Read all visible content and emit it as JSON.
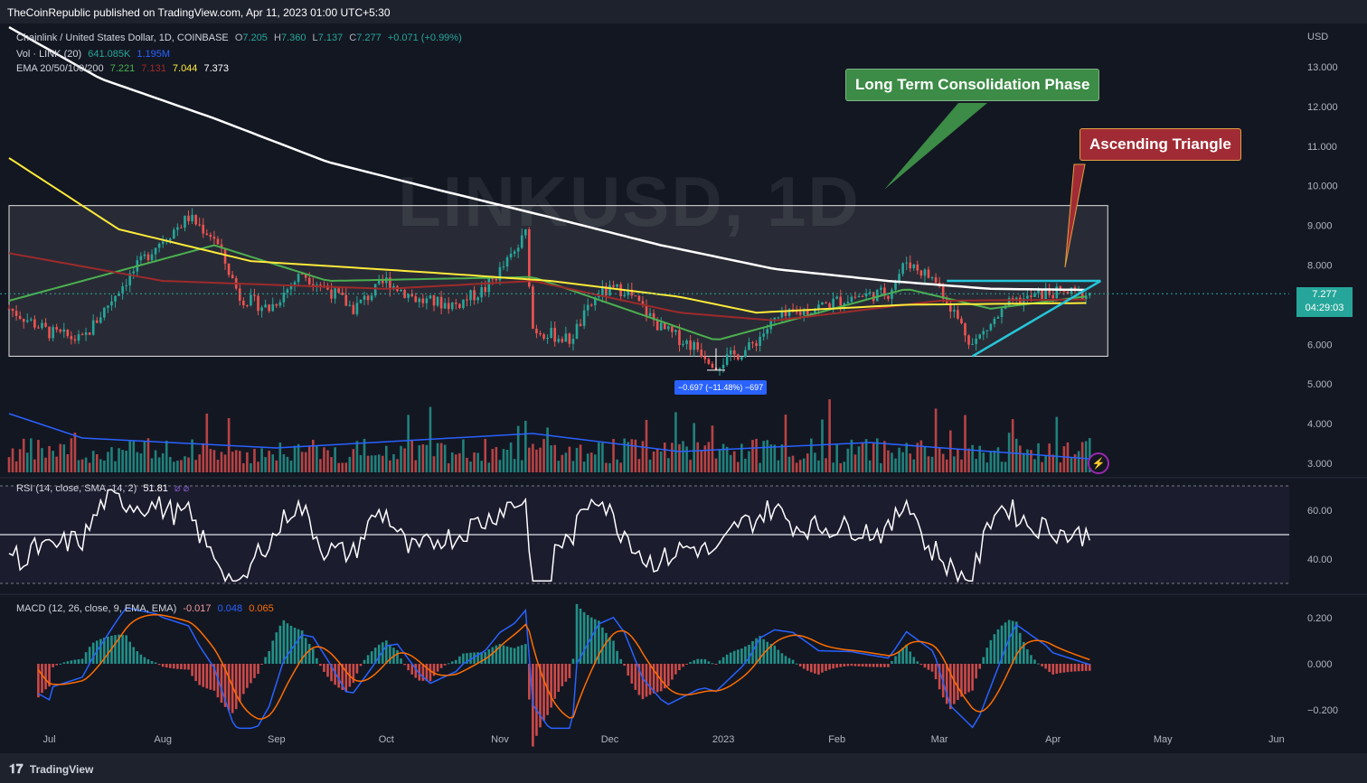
{
  "header": {
    "published": "TheCoinRepublic published on TradingView.com, Apr 11, 2023 01:00 UTC+5:30"
  },
  "footer": {
    "brand": "TradingView"
  },
  "legend": {
    "symbol": "Chainlink / United States Dollar, 1D, COINBASE",
    "o_label": "O",
    "o": "7.205",
    "h_label": "H",
    "h": "7.360",
    "l_label": "L",
    "l": "7.137",
    "c_label": "C",
    "c": "7.277",
    "change": "+0.071 (+0.99%)",
    "vol_label": "Vol · LINK (20)",
    "vol_1": "641.085K",
    "vol_2": "1.195M",
    "ema_label": "EMA 20/50/100/200",
    "ema20": "7.221",
    "ema50": "7.131",
    "ema100": "7.044",
    "ema200": "7.373",
    "rsi_label": "RSI (14, close, SMA, 14, 2)",
    "rsi_value": "51.81",
    "rsi_extra": "⌀ ⌀",
    "macd_label": "MACD (12, 26, close, 9, EMA, EMA)",
    "macd_hist": "-0.017",
    "macd_line": "0.048",
    "macd_signal": "0.065"
  },
  "watermark": "LINKUSD, 1D",
  "annotations": {
    "consolidation": "Long Term Consolidation Phase",
    "triangle": "Ascending Triangle",
    "measure": "−0.697 (−11.48%) −697"
  },
  "price_tag": {
    "price": "7.277",
    "countdown": "04:29:03"
  },
  "colors": {
    "background": "#131722",
    "up": "#26a69a",
    "down": "#ef5350",
    "ema20": "#4caf50",
    "ema50": "#9e2a2b",
    "ema100": "#ffeb3b",
    "ema200": "#ffffff",
    "trendline": "#26c6da",
    "callout_green": "#3c8b46",
    "callout_red": "#a12b34",
    "rsi_band": "#7e57c2",
    "macd_line": "#2962ff",
    "signal_line": "#ff6d00",
    "volume_ma": "#2962ff"
  },
  "chart_data": {
    "type": "line",
    "title": "Chainlink / United States Dollar, 1D, COINBASE",
    "currency": "USD",
    "x_ticks": [
      "Jul",
      "Aug",
      "Sep",
      "Oct",
      "Nov",
      "Dec",
      "2023",
      "Feb",
      "Mar",
      "Apr",
      "May",
      "Jun"
    ],
    "price_axis": {
      "ticks": [
        "13.000",
        "12.000",
        "11.000",
        "10.000",
        "9.000",
        "8.000",
        "7.000",
        "6.000",
        "5.000",
        "4.000",
        "3.000"
      ],
      "ylim": [
        2.8,
        13.4
      ]
    },
    "rsi_axis": {
      "ticks": [
        "60.00",
        "40.00"
      ],
      "band": [
        30,
        70
      ],
      "midline": 50,
      "current": 51.81
    },
    "macd_axis": {
      "ticks": [
        "0.200",
        "0.000",
        "−0.200"
      ]
    },
    "consolidation_range": {
      "from": "2022-06-20",
      "to": "2023-04-11",
      "low": 5.7,
      "high": 9.5
    },
    "ascending_triangle": {
      "resistance": 7.6,
      "support_start": [
        "2023-03-10",
        5.7
      ],
      "support_end": [
        "2023-04-11",
        7.6
      ]
    },
    "series": [
      {
        "name": "LINKUSD close (approx.)",
        "points": [
          [
            "2022-06-20",
            6.9
          ],
          [
            "2022-07-01",
            6.3
          ],
          [
            "2022-07-10",
            6.1
          ],
          [
            "2022-07-20",
            7.4
          ],
          [
            "2022-07-30",
            8.5
          ],
          [
            "2022-08-08",
            9.2
          ],
          [
            "2022-08-15",
            8.7
          ],
          [
            "2022-08-22",
            7.2
          ],
          [
            "2022-08-30",
            6.9
          ],
          [
            "2022-09-08",
            7.8
          ],
          [
            "2022-09-15",
            7.4
          ],
          [
            "2022-09-22",
            6.9
          ],
          [
            "2022-10-01",
            7.6
          ],
          [
            "2022-10-10",
            7.1
          ],
          [
            "2022-10-20",
            7.0
          ],
          [
            "2022-10-28",
            7.4
          ],
          [
            "2022-11-05",
            8.3
          ],
          [
            "2022-11-08",
            8.8
          ],
          [
            "2022-11-10",
            6.4
          ],
          [
            "2022-11-20",
            6.1
          ],
          [
            "2022-11-28",
            7.3
          ],
          [
            "2022-12-05",
            7.4
          ],
          [
            "2022-12-15",
            6.4
          ],
          [
            "2022-12-25",
            5.9
          ],
          [
            "2022-12-30",
            5.5
          ],
          [
            "2023-01-08",
            5.9
          ],
          [
            "2023-01-15",
            6.6
          ],
          [
            "2023-01-25",
            6.9
          ],
          [
            "2023-02-05",
            7.2
          ],
          [
            "2023-02-15",
            7.3
          ],
          [
            "2023-02-20",
            8.1
          ],
          [
            "2023-02-28",
            7.6
          ],
          [
            "2023-03-10",
            6.0
          ],
          [
            "2023-03-20",
            7.0
          ],
          [
            "2023-03-30",
            7.3
          ],
          [
            "2023-04-11",
            7.277
          ]
        ]
      },
      {
        "name": "EMA 20",
        "points": [
          [
            "2022-06-20",
            7.1
          ],
          [
            "2022-08-15",
            8.5
          ],
          [
            "2022-09-15",
            7.6
          ],
          [
            "2022-11-10",
            7.7
          ],
          [
            "2022-12-30",
            6.1
          ],
          [
            "2023-02-20",
            7.4
          ],
          [
            "2023-03-15",
            6.9
          ],
          [
            "2023-04-11",
            7.221
          ]
        ]
      },
      {
        "name": "EMA 50",
        "points": [
          [
            "2022-06-20",
            8.3
          ],
          [
            "2022-08-01",
            7.6
          ],
          [
            "2022-10-01",
            7.4
          ],
          [
            "2022-11-10",
            7.6
          ],
          [
            "2022-12-20",
            6.8
          ],
          [
            "2023-01-15",
            6.6
          ],
          [
            "2023-03-01",
            7.1
          ],
          [
            "2023-04-11",
            7.131
          ]
        ]
      },
      {
        "name": "EMA 100",
        "points": [
          [
            "2022-06-20",
            10.7
          ],
          [
            "2022-07-20",
            8.9
          ],
          [
            "2022-08-25",
            8.1
          ],
          [
            "2022-10-15",
            7.8
          ],
          [
            "2022-11-15",
            7.6
          ],
          [
            "2022-12-20",
            7.2
          ],
          [
            "2023-01-10",
            6.8
          ],
          [
            "2023-02-20",
            7.0
          ],
          [
            "2023-04-11",
            7.044
          ]
        ]
      },
      {
        "name": "EMA 200",
        "points": [
          [
            "2022-06-20",
            14.0
          ],
          [
            "2022-07-15",
            12.7
          ],
          [
            "2022-08-15",
            11.7
          ],
          [
            "2022-09-15",
            10.6
          ],
          [
            "2022-10-15",
            9.9
          ],
          [
            "2022-11-15",
            9.2
          ],
          [
            "2022-12-15",
            8.5
          ],
          [
            "2023-01-15",
            7.9
          ],
          [
            "2023-02-15",
            7.6
          ],
          [
            "2023-03-15",
            7.4
          ],
          [
            "2023-04-11",
            7.373
          ]
        ]
      }
    ]
  }
}
